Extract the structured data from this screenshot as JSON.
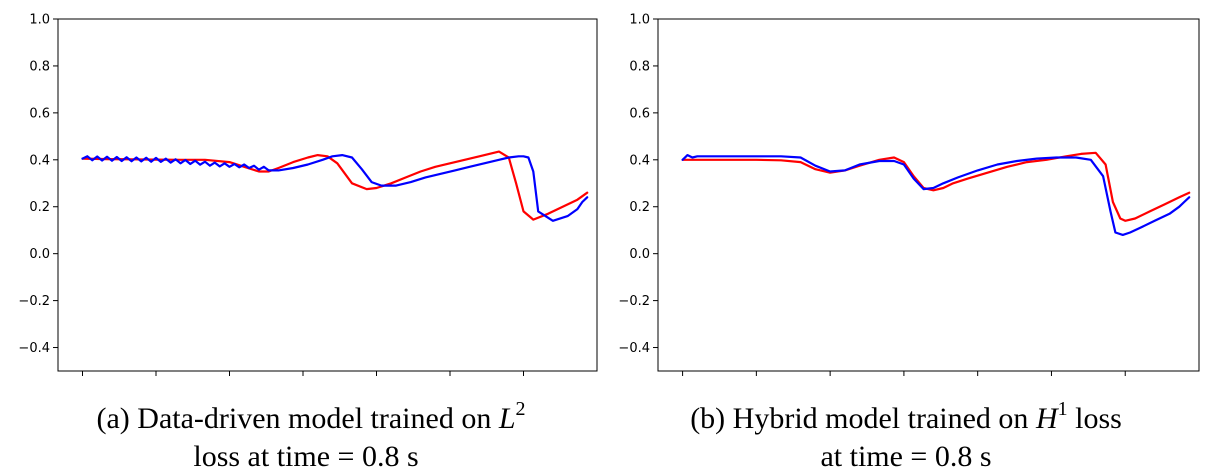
{
  "chart_data": [
    {
      "type": "line",
      "caption": {
        "prefix": "(a) Data-driven model trained on ",
        "math": "L",
        "sup": "2",
        "line2": "loss at time = 0.8 s"
      },
      "ylim": [
        -0.5,
        1.0
      ],
      "xlim": [
        -0.05,
        1.05
      ],
      "yticks": [
        -0.4,
        -0.2,
        0.0,
        0.2,
        0.4,
        0.6,
        0.8,
        1.0
      ],
      "ytick_labels": [
        "−0.4",
        "−0.2",
        "0.0",
        "0.2",
        "0.4",
        "0.6",
        "0.8",
        "1.0"
      ],
      "xticks": [
        0.0,
        0.15,
        0.3,
        0.45,
        0.6,
        0.75,
        0.9
      ],
      "grid": false,
      "series": [
        {
          "color": "#ff0000",
          "x": [
            0.0,
            0.05,
            0.1,
            0.15,
            0.2,
            0.25,
            0.3,
            0.33,
            0.36,
            0.38,
            0.4,
            0.43,
            0.46,
            0.48,
            0.5,
            0.52,
            0.55,
            0.58,
            0.6,
            0.63,
            0.66,
            0.69,
            0.72,
            0.75,
            0.78,
            0.81,
            0.83,
            0.85,
            0.87,
            0.885,
            0.9,
            0.92,
            0.95,
            0.98,
            1.01,
            1.03
          ],
          "y": [
            0.405,
            0.403,
            0.402,
            0.401,
            0.4,
            0.4,
            0.39,
            0.37,
            0.35,
            0.35,
            0.365,
            0.39,
            0.41,
            0.42,
            0.415,
            0.385,
            0.3,
            0.275,
            0.28,
            0.3,
            0.325,
            0.35,
            0.37,
            0.385,
            0.4,
            0.415,
            0.425,
            0.435,
            0.41,
            0.3,
            0.18,
            0.145,
            0.17,
            0.2,
            0.23,
            0.26
          ]
        },
        {
          "color": "#0000ff",
          "x": [
            0.0,
            0.01,
            0.02,
            0.03,
            0.04,
            0.05,
            0.06,
            0.07,
            0.08,
            0.09,
            0.1,
            0.11,
            0.12,
            0.13,
            0.14,
            0.15,
            0.16,
            0.17,
            0.18,
            0.19,
            0.2,
            0.21,
            0.22,
            0.23,
            0.24,
            0.25,
            0.26,
            0.27,
            0.28,
            0.29,
            0.3,
            0.31,
            0.32,
            0.33,
            0.34,
            0.35,
            0.36,
            0.37,
            0.38,
            0.4,
            0.43,
            0.46,
            0.49,
            0.51,
            0.53,
            0.55,
            0.57,
            0.59,
            0.61,
            0.64,
            0.67,
            0.7,
            0.73,
            0.76,
            0.79,
            0.82,
            0.85,
            0.87,
            0.89,
            0.9,
            0.91,
            0.92,
            0.93,
            0.96,
            0.99,
            1.01,
            1.02,
            1.03
          ],
          "y": [
            0.405,
            0.415,
            0.398,
            0.414,
            0.397,
            0.413,
            0.396,
            0.412,
            0.395,
            0.411,
            0.394,
            0.41,
            0.393,
            0.409,
            0.392,
            0.408,
            0.391,
            0.405,
            0.388,
            0.402,
            0.385,
            0.399,
            0.382,
            0.396,
            0.379,
            0.392,
            0.375,
            0.388,
            0.372,
            0.385,
            0.37,
            0.382,
            0.368,
            0.38,
            0.365,
            0.375,
            0.358,
            0.37,
            0.355,
            0.355,
            0.365,
            0.38,
            0.4,
            0.415,
            0.42,
            0.41,
            0.36,
            0.305,
            0.29,
            0.29,
            0.305,
            0.325,
            0.34,
            0.355,
            0.37,
            0.385,
            0.4,
            0.41,
            0.415,
            0.415,
            0.41,
            0.35,
            0.18,
            0.14,
            0.16,
            0.19,
            0.22,
            0.24
          ]
        }
      ]
    },
    {
      "type": "line",
      "caption": {
        "prefix": "(b) Hybrid model trained on ",
        "math": "H",
        "sup": "1",
        "suffix": " loss",
        "line2": "at time = 0.8 s"
      },
      "ylim": [
        -0.5,
        1.0
      ],
      "xlim": [
        -0.05,
        1.05
      ],
      "yticks": [
        -0.4,
        -0.2,
        0.0,
        0.2,
        0.4,
        0.6,
        0.8,
        1.0
      ],
      "ytick_labels": [
        "−0.4",
        "−0.2",
        "0.0",
        "0.2",
        "0.4",
        "0.6",
        "0.8",
        "1.0"
      ],
      "xticks": [
        0.0,
        0.15,
        0.3,
        0.45,
        0.6,
        0.75,
        0.9
      ],
      "grid": false,
      "series": [
        {
          "color": "#ff0000",
          "x": [
            0.0,
            0.05,
            0.1,
            0.15,
            0.2,
            0.24,
            0.27,
            0.3,
            0.33,
            0.36,
            0.4,
            0.43,
            0.45,
            0.47,
            0.49,
            0.51,
            0.53,
            0.55,
            0.58,
            0.62,
            0.66,
            0.7,
            0.74,
            0.78,
            0.81,
            0.84,
            0.86,
            0.875,
            0.89,
            0.9,
            0.92,
            0.95,
            0.98,
            1.01,
            1.03
          ],
          "y": [
            0.4,
            0.4,
            0.4,
            0.4,
            0.398,
            0.39,
            0.36,
            0.345,
            0.355,
            0.375,
            0.4,
            0.41,
            0.39,
            0.33,
            0.28,
            0.27,
            0.28,
            0.3,
            0.32,
            0.345,
            0.37,
            0.39,
            0.4,
            0.415,
            0.425,
            0.43,
            0.38,
            0.22,
            0.15,
            0.14,
            0.15,
            0.18,
            0.21,
            0.24,
            0.26
          ]
        },
        {
          "color": "#0000ff",
          "x": [
            0.0,
            0.01,
            0.02,
            0.03,
            0.06,
            0.1,
            0.15,
            0.2,
            0.24,
            0.27,
            0.3,
            0.33,
            0.36,
            0.4,
            0.43,
            0.45,
            0.47,
            0.49,
            0.51,
            0.53,
            0.56,
            0.6,
            0.64,
            0.68,
            0.72,
            0.76,
            0.8,
            0.83,
            0.855,
            0.87,
            0.88,
            0.895,
            0.91,
            0.93,
            0.96,
            0.99,
            1.01,
            1.02,
            1.03
          ],
          "y": [
            0.4,
            0.42,
            0.41,
            0.415,
            0.415,
            0.415,
            0.415,
            0.415,
            0.41,
            0.375,
            0.35,
            0.355,
            0.38,
            0.395,
            0.395,
            0.38,
            0.32,
            0.275,
            0.28,
            0.3,
            0.325,
            0.355,
            0.38,
            0.395,
            0.405,
            0.41,
            0.41,
            0.4,
            0.33,
            0.18,
            0.09,
            0.08,
            0.09,
            0.11,
            0.14,
            0.17,
            0.2,
            0.22,
            0.24
          ]
        }
      ]
    }
  ]
}
